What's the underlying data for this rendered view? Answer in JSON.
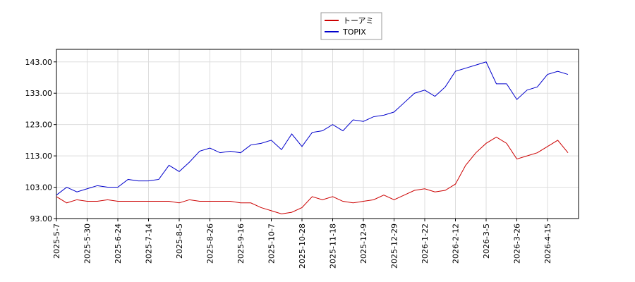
{
  "chart_data": {
    "type": "line",
    "categories": [
      "2025-5-7",
      null,
      null,
      "2025-5-30",
      null,
      null,
      "2025-6-24",
      null,
      null,
      "2025-7-14",
      null,
      null,
      "2025-8-5",
      null,
      null,
      "2025-8-26",
      null,
      null,
      "2025-9-16",
      null,
      null,
      "2025-10-7",
      null,
      null,
      "2025-10-28",
      null,
      null,
      "2025-11-18",
      null,
      null,
      "2025-12-9",
      null,
      null,
      "2025-12-29",
      null,
      null,
      "2026-1-22",
      null,
      null,
      "2026-2-12",
      null,
      null,
      "2026-3-5",
      null,
      null,
      "2026-3-26",
      null,
      null,
      "2026-4-15",
      null,
      null
    ],
    "series": [
      {
        "name": "トーアミ",
        "color": "#cc0000",
        "values": [
          100,
          98,
          99,
          98.5,
          98.5,
          99,
          98.5,
          98.5,
          98.5,
          98.5,
          98.5,
          98.5,
          98,
          99,
          98.5,
          98.5,
          98.5,
          98.5,
          98,
          98,
          96.5,
          95.5,
          94.5,
          95,
          96.5,
          100,
          99,
          100,
          98.5,
          98,
          98.5,
          99,
          100.5,
          99,
          100.5,
          102,
          102.5,
          101.5,
          102,
          104,
          110,
          114,
          117,
          119,
          117,
          112,
          113,
          114,
          116,
          118,
          114
        ]
      },
      {
        "name": "TOPIX",
        "color": "#0000cc",
        "values": [
          100.5,
          103,
          101.5,
          102.5,
          103.5,
          103,
          103,
          105.5,
          105,
          105,
          105.5,
          110,
          108,
          111,
          114.5,
          115.5,
          114,
          114.5,
          114,
          116.5,
          117,
          118,
          115,
          120,
          116,
          120.5,
          121,
          123,
          121,
          124.5,
          124,
          125.5,
          126,
          127,
          130,
          133,
          134,
          132,
          135,
          140,
          141,
          142,
          143,
          136,
          136,
          131,
          134,
          135,
          139,
          140,
          139
        ]
      }
    ],
    "ylim": [
      93,
      147
    ],
    "yticks": [
      {
        "value": 93,
        "label": "93.00"
      },
      {
        "value": 103,
        "label": "103.00"
      },
      {
        "value": 113,
        "label": "113.00"
      },
      {
        "value": 123,
        "label": "123.00"
      },
      {
        "value": 133,
        "label": "133.00"
      },
      {
        "value": 143,
        "label": "143.00"
      }
    ],
    "grid": true,
    "legend": "top"
  }
}
